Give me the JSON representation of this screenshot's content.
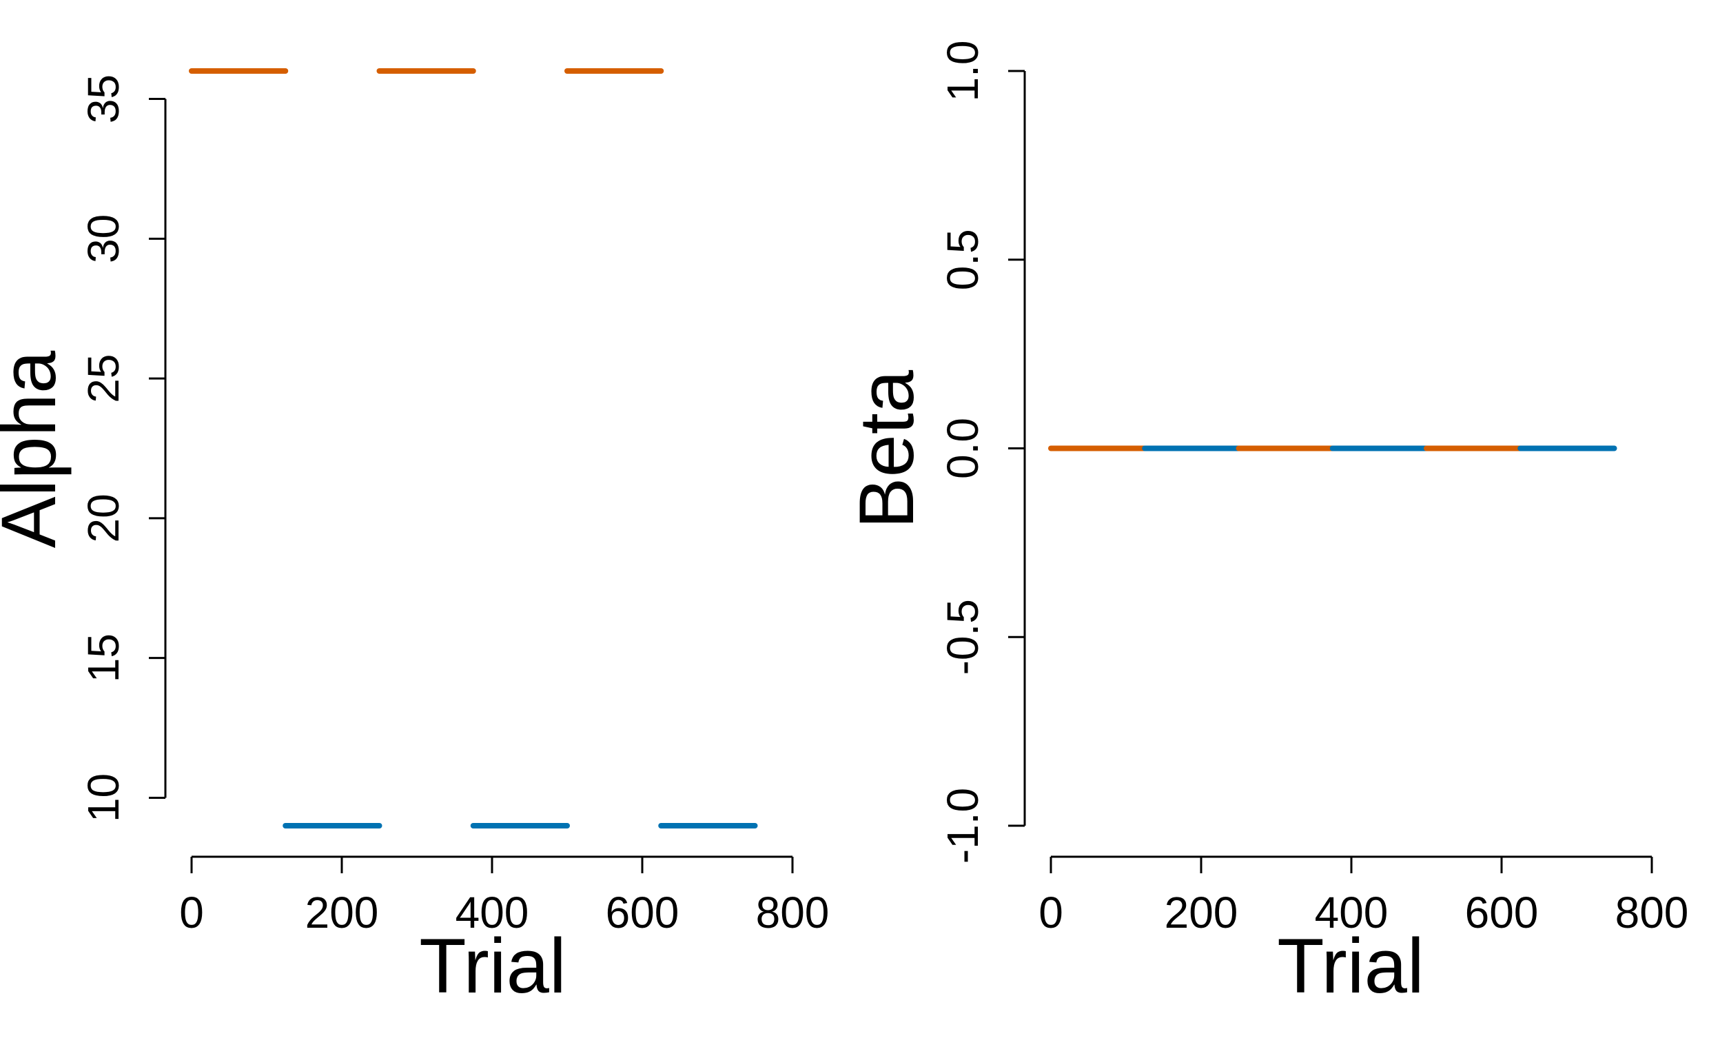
{
  "chart_data": [
    {
      "type": "line",
      "title": "",
      "xlabel": "Trial",
      "ylabel": "Alpha",
      "xlim": [
        0,
        800
      ],
      "ylim": [
        9,
        36
      ],
      "xticks": [
        "0",
        "200",
        "400",
        "600",
        "800"
      ],
      "yticks": [
        "10",
        "15",
        "20",
        "25",
        "30",
        "35"
      ],
      "grid": false,
      "segments": [
        {
          "x": [
            0,
            125
          ],
          "y": [
            36,
            36
          ],
          "color": "#D55E00"
        },
        {
          "x": [
            125,
            250
          ],
          "y": [
            9,
            9
          ],
          "color": "#0072B2"
        },
        {
          "x": [
            250,
            375
          ],
          "y": [
            36,
            36
          ],
          "color": "#D55E00"
        },
        {
          "x": [
            375,
            500
          ],
          "y": [
            9,
            9
          ],
          "color": "#0072B2"
        },
        {
          "x": [
            500,
            625
          ],
          "y": [
            36,
            36
          ],
          "color": "#D55E00"
        },
        {
          "x": [
            625,
            750
          ],
          "y": [
            9,
            9
          ],
          "color": "#0072B2"
        }
      ]
    },
    {
      "type": "line",
      "title": "",
      "xlabel": "Trial",
      "ylabel": "Beta",
      "xlim": [
        0,
        800
      ],
      "ylim": [
        -1.0,
        1.0
      ],
      "xticks": [
        "0",
        "200",
        "400",
        "600",
        "800"
      ],
      "yticks": [
        "-1.0",
        "-0.5",
        "0.0",
        "0.5",
        "1.0"
      ],
      "grid": false,
      "segments": [
        {
          "x": [
            0,
            125
          ],
          "y": [
            0,
            0
          ],
          "color": "#D55E00"
        },
        {
          "x": [
            125,
            250
          ],
          "y": [
            0,
            0
          ],
          "color": "#0072B2"
        },
        {
          "x": [
            250,
            375
          ],
          "y": [
            0,
            0
          ],
          "color": "#D55E00"
        },
        {
          "x": [
            375,
            500
          ],
          "y": [
            0,
            0
          ],
          "color": "#0072B2"
        },
        {
          "x": [
            500,
            625
          ],
          "y": [
            0,
            0
          ],
          "color": "#D55E00"
        },
        {
          "x": [
            625,
            750
          ],
          "y": [
            0,
            0
          ],
          "color": "#0072B2"
        }
      ]
    }
  ]
}
